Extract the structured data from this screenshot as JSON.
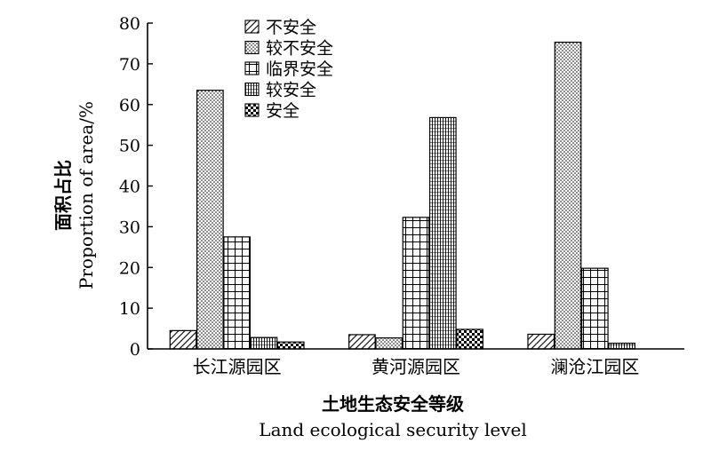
{
  "chart_data": {
    "type": "bar",
    "categories": [
      "长江源园区",
      "黄河源园区",
      "澜沧江园区"
    ],
    "series": [
      {
        "name": "不安全",
        "pattern": "diagonal-hatch",
        "values": [
          4.5,
          3.5,
          3.6
        ]
      },
      {
        "name": "较不安全",
        "pattern": "dots",
        "values": [
          63.5,
          2.7,
          75.3
        ]
      },
      {
        "name": "临界安全",
        "pattern": "grid",
        "values": [
          27.5,
          32.3,
          19.8
        ]
      },
      {
        "name": "较安全",
        "pattern": "fine-grid",
        "values": [
          2.8,
          56.8,
          1.4
        ]
      },
      {
        "name": "安全",
        "pattern": "checker",
        "values": [
          1.7,
          4.8,
          0
        ]
      }
    ],
    "ylim": [
      0,
      80
    ],
    "yticks": [
      "0",
      "10",
      "20",
      "30",
      "40",
      "50",
      "60",
      "70",
      "80"
    ],
    "ylabel_cn": "面积占比",
    "ylabel_en": "Proportion of area/%",
    "xlabel_cn": "土地生态安全等级",
    "xlabel_en": "Land ecological security level",
    "legend_position": "top-left-inside",
    "grid": false,
    "colors": {
      "ink": "#000000",
      "background": "#ffffff"
    }
  }
}
